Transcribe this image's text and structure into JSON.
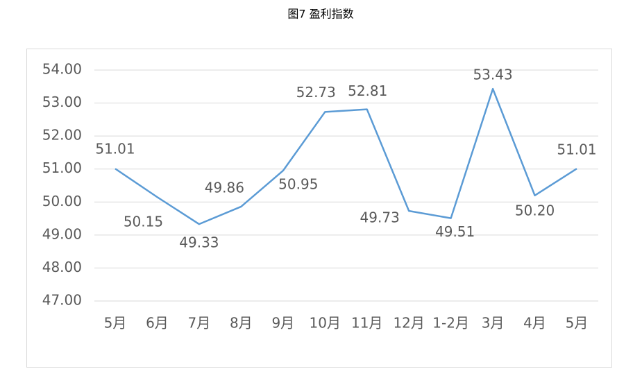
{
  "chart_data": {
    "type": "line",
    "title": "图7 盈利指数",
    "categories": [
      "5月",
      "6月",
      "7月",
      "8月",
      "9月",
      "10月",
      "11月",
      "12月",
      "1-2月",
      "3月",
      "4月",
      "5月"
    ],
    "series": [
      {
        "color": "#5b9bd5",
        "values": [
          51.01,
          50.15,
          49.33,
          49.86,
          50.95,
          52.73,
          52.81,
          49.73,
          49.51,
          53.43,
          50.2,
          51.01
        ],
        "value_labels": [
          "51.01",
          "50.15",
          "49.33",
          "49.86",
          "50.95",
          "52.73",
          "52.81",
          "49.73",
          "49.51",
          "53.43",
          "50.20",
          "51.01"
        ]
      }
    ],
    "ylim": [
      47,
      54
    ],
    "yticks": [
      {
        "value": 47,
        "label": "47.00"
      },
      {
        "value": 48,
        "label": "48.00"
      },
      {
        "value": 49,
        "label": "49.00"
      },
      {
        "value": 50,
        "label": "50.00"
      },
      {
        "value": 51,
        "label": "51.00"
      },
      {
        "value": 52,
        "label": "52.00"
      },
      {
        "value": 53,
        "label": "53.00"
      },
      {
        "value": 54,
        "label": "54.00"
      }
    ],
    "grid": true
  }
}
